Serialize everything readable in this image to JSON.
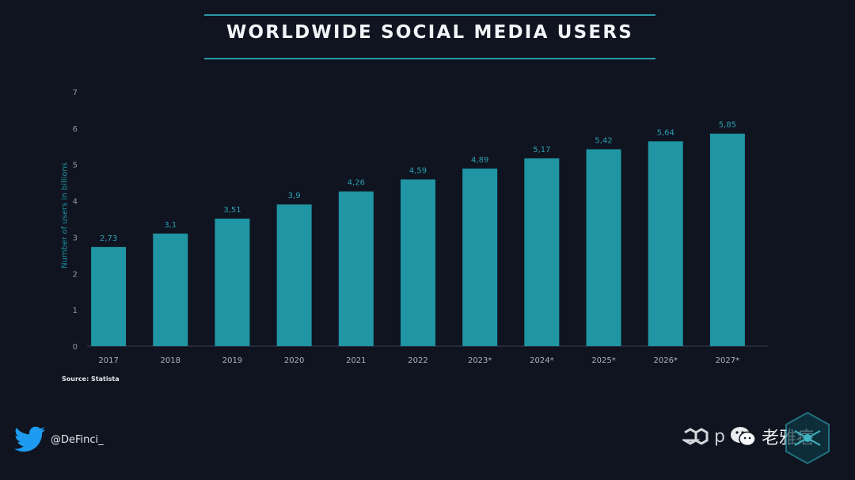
{
  "header": {
    "title": "WORLDWIDE SOCIAL MEDIA USERS"
  },
  "chart_data": {
    "type": "bar",
    "title": "WORLDWIDE SOCIAL MEDIA USERS",
    "xlabel": "",
    "ylabel": "Number of users in billions",
    "ylim": [
      0,
      7
    ],
    "yticks": [
      0,
      1,
      2,
      3,
      4,
      5,
      6,
      7
    ],
    "categories": [
      "2017",
      "2018",
      "2019",
      "2020",
      "2021",
      "2022",
      "2023*",
      "2024*",
      "2025*",
      "2026*",
      "2027*"
    ],
    "values": [
      2.73,
      3.1,
      3.51,
      3.9,
      4.26,
      4.59,
      4.89,
      5.17,
      5.42,
      5.64,
      5.85
    ],
    "value_labels": [
      "2,73",
      "3,1",
      "3,51",
      "3,9",
      "4,26",
      "4,59",
      "4,89",
      "5,17",
      "5,42",
      "5,64",
      "5,85"
    ],
    "bar_color": "#2095a3",
    "grid": false
  },
  "footer": {
    "source": "Source: Statista",
    "twitter_handle": "@DeFinci_",
    "brand_partial": "p",
    "watermark": "老雅痞"
  },
  "colors": {
    "background": "#0f1420",
    "accent": "#2a97a6",
    "bar": "#2095a3",
    "label": "#1f8fa0"
  }
}
